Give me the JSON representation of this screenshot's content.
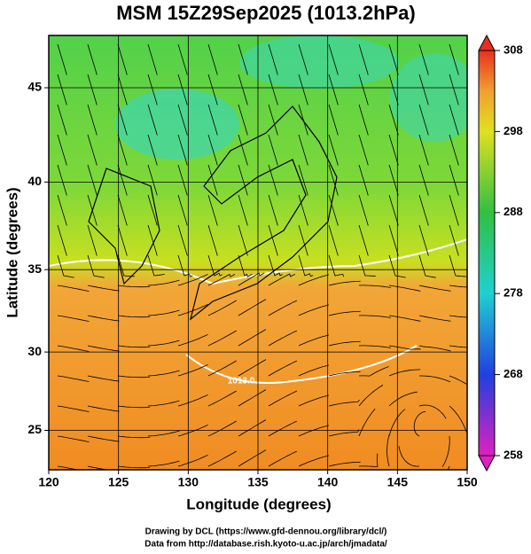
{
  "chart_data": {
    "type": "map",
    "title": "MSM 15Z29Sep2025 (1013.2hPa)",
    "x_label": "Longitude (degrees)",
    "y_label": "Latitude  (degrees)",
    "xlim": [
      120,
      150
    ],
    "xticks": [
      120,
      125,
      130,
      135,
      140,
      145,
      150
    ],
    "ylim": [
      22.4,
      47.6
    ],
    "yticks": [
      25,
      30,
      35,
      40,
      45
    ],
    "y_scale": "mercator",
    "grid": true,
    "colorbar_lim": [
      258,
      308
    ],
    "colorbar_ticks": [
      258,
      268,
      278,
      288,
      298,
      308
    ],
    "annotations": [
      "1013.0"
    ],
    "credits": [
      "Drawing by DCL (https://www.gfd-dennou.org/library/dcl/)",
      "Data from http://database.rish.kyoto-u.ac.jp/arch/jmadata/"
    ]
  }
}
